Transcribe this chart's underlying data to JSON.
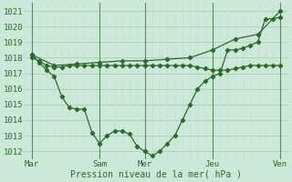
{
  "title": "",
  "xlabel": "Pression niveau de la mer( hPa )",
  "ylabel": "",
  "bg_color": "#cce8d8",
  "line_color": "#2d6b2d",
  "grid_color_h": "#aaccb8",
  "grid_color_v": "#c8e0d0",
  "ylim": [
    1011.5,
    1021.5
  ],
  "yticks": [
    1012,
    1013,
    1014,
    1015,
    1016,
    1017,
    1018,
    1019,
    1020,
    1021
  ],
  "xtick_labels": [
    "Mar",
    "Sam",
    "Mer",
    "Jeu",
    "Ven"
  ],
  "xtick_positions": [
    0,
    9,
    15,
    24,
    33
  ],
  "xlim": [
    -1,
    34
  ],
  "line1_x": [
    0,
    1,
    2,
    3,
    4,
    5,
    6,
    7,
    8,
    9,
    10,
    11,
    12,
    13,
    14,
    15,
    16,
    17,
    18,
    19,
    20,
    21,
    22,
    23,
    24,
    25,
    26,
    27,
    28,
    29,
    30,
    31,
    32,
    33
  ],
  "line1_y": [
    1018.2,
    1017.7,
    1017.2,
    1016.8,
    1015.5,
    1014.8,
    1014.7,
    1014.7,
    1013.2,
    1012.5,
    1013.0,
    1013.3,
    1013.3,
    1013.1,
    1012.3,
    1012.0,
    1011.7,
    1012.0,
    1012.5,
    1013.0,
    1014.0,
    1015.0,
    1016.0,
    1016.5,
    1016.8,
    1017.0,
    1018.5,
    1018.5,
    1018.6,
    1018.8,
    1019.0,
    1020.5,
    1020.5,
    1020.6
  ],
  "line2_x": [
    0,
    1,
    2,
    3,
    4,
    5,
    6,
    7,
    8,
    9,
    10,
    11,
    12,
    13,
    14,
    15,
    16,
    17,
    18,
    19,
    20,
    21,
    22,
    23,
    24,
    25,
    26,
    27,
    28,
    29,
    30,
    31,
    32,
    33
  ],
  "line2_y": [
    1018.0,
    1017.8,
    1017.5,
    1017.4,
    1017.4,
    1017.5,
    1017.5,
    1017.5,
    1017.5,
    1017.5,
    1017.5,
    1017.5,
    1017.5,
    1017.5,
    1017.5,
    1017.5,
    1017.5,
    1017.5,
    1017.5,
    1017.5,
    1017.5,
    1017.5,
    1017.4,
    1017.3,
    1017.2,
    1017.2,
    1017.2,
    1017.3,
    1017.4,
    1017.5,
    1017.5,
    1017.5,
    1017.5,
    1017.5
  ],
  "line3_x": [
    0,
    3,
    6,
    9,
    12,
    15,
    18,
    21,
    24,
    27,
    30,
    33
  ],
  "line3_y": [
    1018.2,
    1017.5,
    1017.6,
    1017.7,
    1017.8,
    1017.8,
    1017.9,
    1018.0,
    1018.5,
    1019.2,
    1019.5,
    1021.0
  ],
  "vline_positions": [
    0,
    9,
    15,
    24,
    33
  ],
  "fontsize": 6.5
}
